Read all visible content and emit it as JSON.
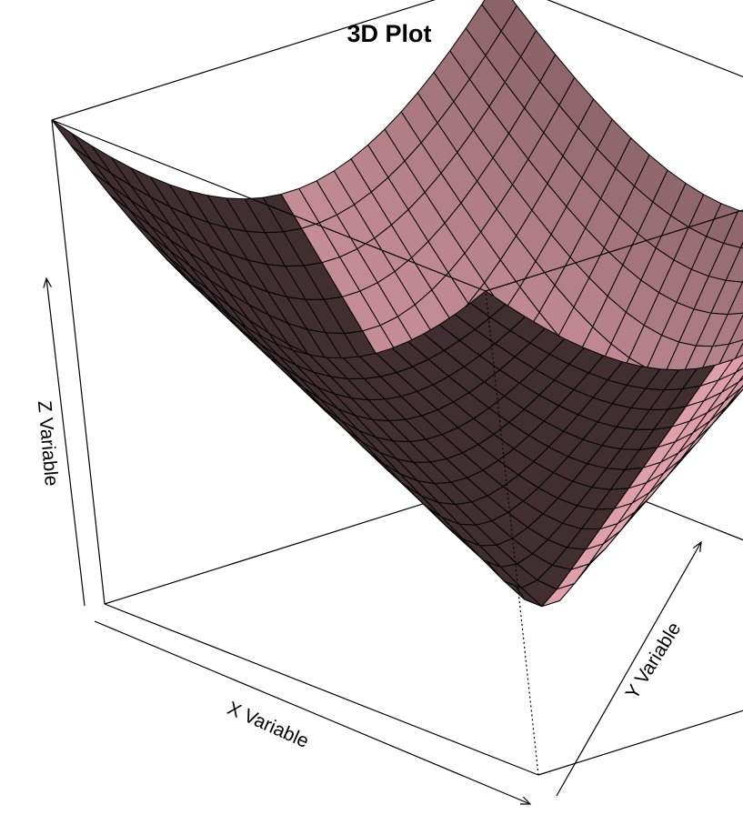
{
  "chart_data": {
    "type": "surface",
    "title": "3D Plot",
    "xlabel": "X Variable",
    "ylabel": "Y Variable",
    "zlabel": "Z Variable",
    "surface_function": "sqrt(x^2 + y^2)",
    "xlim": [
      -10,
      10
    ],
    "ylim": [
      -10,
      10
    ],
    "zlim": [
      0,
      14.14
    ],
    "grid_lines_per_axis": 25,
    "box": true,
    "colors": {
      "surface": "#ffb6c1",
      "mesh": "#000000",
      "box": "#000000",
      "background": "#ffffff"
    }
  }
}
